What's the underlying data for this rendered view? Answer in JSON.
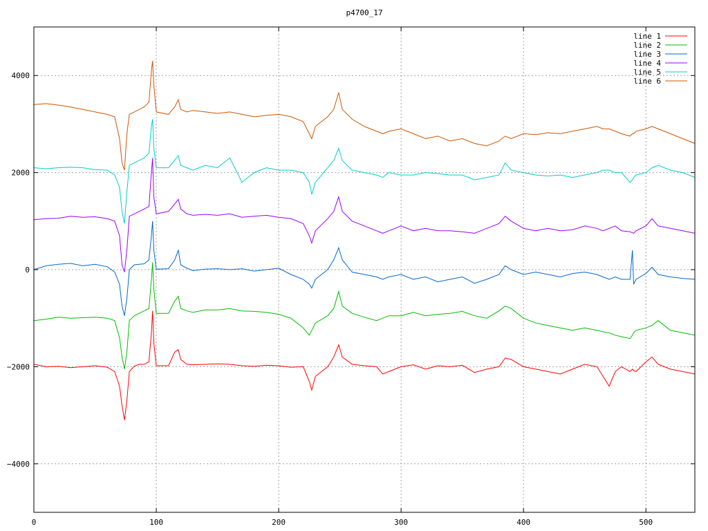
{
  "chart_data": {
    "type": "line",
    "title": "p4700_17",
    "xlabel": "",
    "ylabel": "",
    "xlim": [
      0,
      540
    ],
    "ylim": [
      -5000,
      5000
    ],
    "xticks": [
      0,
      100,
      200,
      300,
      400,
      500
    ],
    "yticks": [
      -4000,
      -2000,
      0,
      2000,
      4000
    ],
    "grid": true,
    "legend_position": "top-right",
    "x": [
      0,
      10,
      20,
      30,
      40,
      50,
      60,
      66,
      70,
      72,
      74,
      76,
      78,
      82,
      86,
      90,
      94,
      96,
      97,
      98,
      100,
      110,
      115,
      118,
      120,
      125,
      130,
      140,
      150,
      160,
      170,
      180,
      190,
      200,
      210,
      220,
      225,
      227,
      230,
      240,
      245,
      249,
      252,
      260,
      270,
      280,
      285,
      290,
      300,
      310,
      320,
      330,
      340,
      350,
      360,
      370,
      380,
      385,
      390,
      400,
      410,
      420,
      430,
      440,
      450,
      460,
      465,
      470,
      475,
      480,
      487,
      489,
      490,
      492,
      500,
      505,
      510,
      520,
      530,
      540
    ],
    "series": [
      {
        "name": "line 1",
        "color": "#ff0000",
        "values": [
          -1950,
          -2000,
          -1990,
          -2020,
          -2000,
          -1980,
          -2010,
          -2100,
          -2400,
          -2800,
          -3100,
          -2700,
          -2100,
          -1990,
          -1950,
          -1950,
          -1900,
          -1300,
          -850,
          -1500,
          -1980,
          -1980,
          -1700,
          -1650,
          -1850,
          -1950,
          -1960,
          -1950,
          -1940,
          -1950,
          -1980,
          -1990,
          -1970,
          -1980,
          -2010,
          -2000,
          -2300,
          -2480,
          -2200,
          -2000,
          -1800,
          -1550,
          -1800,
          -1950,
          -1980,
          -2000,
          -2150,
          -2100,
          -2000,
          -1960,
          -2050,
          -1980,
          -2000,
          -1970,
          -2120,
          -2050,
          -2000,
          -1820,
          -1850,
          -2000,
          -2050,
          -2100,
          -2150,
          -2050,
          -1950,
          -2000,
          -2200,
          -2400,
          -2100,
          -2000,
          -2100,
          -2050,
          -2080,
          -2100,
          -1900,
          -1800,
          -1950,
          -2050,
          -2100,
          -2150
        ]
      },
      {
        "name": "line 2",
        "color": "#00bb00",
        "values": [
          -1050,
          -1020,
          -980,
          -1000,
          -990,
          -980,
          -1000,
          -1050,
          -1400,
          -1800,
          -2050,
          -1700,
          -1050,
          -950,
          -900,
          -850,
          -800,
          -200,
          150,
          -400,
          -900,
          -900,
          -650,
          -550,
          -800,
          -850,
          -880,
          -830,
          -830,
          -800,
          -850,
          -860,
          -880,
          -920,
          -1000,
          -1200,
          -1350,
          -1250,
          -1100,
          -950,
          -800,
          -450,
          -750,
          -900,
          -980,
          -1050,
          -1000,
          -950,
          -950,
          -880,
          -950,
          -920,
          -900,
          -860,
          -950,
          -1000,
          -850,
          -750,
          -800,
          -1000,
          -1100,
          -1150,
          -1200,
          -1250,
          -1200,
          -1250,
          -1280,
          -1300,
          -1350,
          -1380,
          -1420,
          -1350,
          -1300,
          -1250,
          -1200,
          -1150,
          -1050,
          -1250,
          -1300,
          -1350
        ]
      },
      {
        "name": "line 3",
        "color": "#0066cc",
        "values": [
          0,
          80,
          110,
          130,
          80,
          110,
          60,
          -50,
          -300,
          -750,
          -950,
          -600,
          0,
          100,
          110,
          120,
          200,
          700,
          1000,
          400,
          10,
          20,
          200,
          400,
          100,
          30,
          -20,
          10,
          20,
          0,
          20,
          -30,
          0,
          30,
          -100,
          -200,
          -300,
          -380,
          -200,
          0,
          200,
          450,
          200,
          -50,
          -100,
          -150,
          -200,
          -150,
          -100,
          -200,
          -150,
          -250,
          -200,
          -150,
          -280,
          -200,
          -100,
          80,
          0,
          -100,
          -50,
          -100,
          -150,
          -80,
          -50,
          -100,
          -150,
          -200,
          -150,
          -200,
          -200,
          400,
          -300,
          -200,
          -80,
          50,
          -100,
          -150,
          -180,
          -200
        ]
      },
      {
        "name": "line 4",
        "color": "#9900ff",
        "values": [
          1030,
          1050,
          1060,
          1100,
          1080,
          1090,
          1050,
          1000,
          700,
          100,
          -50,
          400,
          1100,
          1150,
          1200,
          1250,
          1300,
          2000,
          2300,
          1500,
          1150,
          1200,
          1350,
          1450,
          1250,
          1150,
          1120,
          1140,
          1120,
          1150,
          1080,
          1100,
          1120,
          1080,
          1050,
          950,
          700,
          550,
          800,
          1050,
          1200,
          1500,
          1200,
          1000,
          900,
          800,
          750,
          800,
          900,
          800,
          850,
          800,
          800,
          780,
          750,
          850,
          950,
          1100,
          1000,
          850,
          800,
          850,
          800,
          820,
          900,
          850,
          800,
          850,
          900,
          800,
          780,
          760,
          750,
          800,
          900,
          1050,
          900,
          850,
          800,
          750
        ]
      },
      {
        "name": "line 5",
        "color": "#00cccc",
        "values": [
          2100,
          2080,
          2100,
          2110,
          2100,
          2060,
          2050,
          1950,
          1700,
          1200,
          950,
          1600,
          2150,
          2200,
          2250,
          2300,
          2400,
          2950,
          3100,
          2500,
          2100,
          2100,
          2250,
          2350,
          2150,
          2100,
          2050,
          2150,
          2100,
          2300,
          1800,
          2000,
          2100,
          2050,
          2050,
          2000,
          1800,
          1550,
          1800,
          2100,
          2250,
          2500,
          2250,
          2050,
          2000,
          1950,
          1900,
          2000,
          1950,
          1950,
          2000,
          1980,
          1950,
          1950,
          1850,
          1900,
          1950,
          2200,
          2050,
          2000,
          1950,
          1930,
          1950,
          1900,
          1950,
          2000,
          2050,
          2050,
          2000,
          2000,
          1800,
          1850,
          1900,
          1950,
          2000,
          2100,
          2150,
          2050,
          2000,
          1900
        ]
      },
      {
        "name": "line 6",
        "color": "#cc5500",
        "values": [
          3400,
          3420,
          3390,
          3350,
          3300,
          3250,
          3200,
          3150,
          2700,
          2200,
          2050,
          2800,
          3200,
          3250,
          3300,
          3350,
          3450,
          4100,
          4300,
          3800,
          3250,
          3200,
          3350,
          3500,
          3300,
          3250,
          3280,
          3250,
          3220,
          3250,
          3200,
          3150,
          3180,
          3200,
          3150,
          3050,
          2800,
          2700,
          2950,
          3150,
          3300,
          3650,
          3300,
          3100,
          2950,
          2850,
          2800,
          2850,
          2900,
          2800,
          2700,
          2750,
          2650,
          2700,
          2600,
          2550,
          2650,
          2750,
          2700,
          2800,
          2780,
          2820,
          2800,
          2850,
          2900,
          2950,
          2900,
          2900,
          2850,
          2800,
          2750,
          2800,
          2800,
          2850,
          2900,
          2950,
          2900,
          2800,
          2700,
          2600
        ]
      }
    ]
  }
}
